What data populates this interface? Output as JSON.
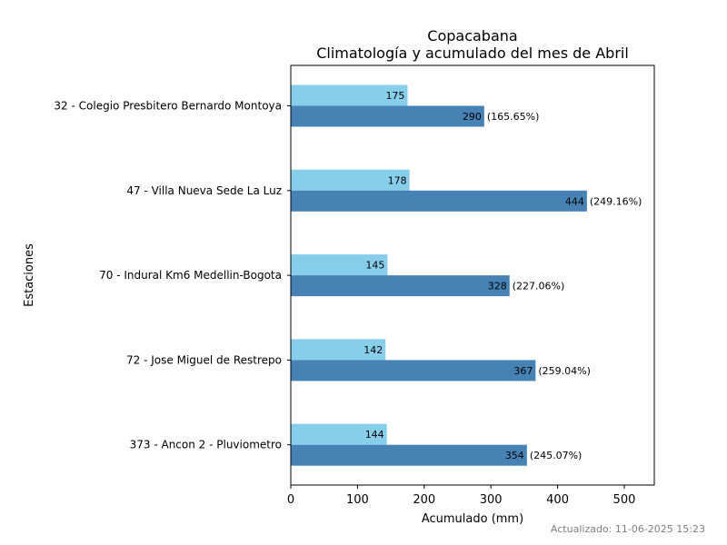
{
  "chart_data": {
    "type": "bar",
    "orientation": "horizontal",
    "title": "Copacabana",
    "subtitle": "Climatología y acumulado del mes de Abril",
    "xlabel": "Acumulado (mm)",
    "ylabel": "Estaciones",
    "xlim": [
      0,
      545
    ],
    "xticks": [
      0,
      100,
      200,
      300,
      400,
      500
    ],
    "grid": false,
    "categories": [
      "32 - Colegio Presbitero Bernardo Montoya",
      "47 - Villa Nueva Sede La Luz",
      "70 - Indural Km6 Medellin-Bogota",
      "72 - Jose Miguel de Restrepo",
      "373 - Ancon 2 - Pluviometro"
    ],
    "series": [
      {
        "values": [
          175,
          178,
          145,
          142,
          144
        ],
        "value_labels": [
          "175",
          "178",
          "145",
          "142",
          "144"
        ],
        "color": "#87CEEB"
      },
      {
        "values": [
          290,
          444,
          328,
          367,
          354
        ],
        "value_labels": [
          "290",
          "444",
          "328",
          "367",
          "354"
        ],
        "percent_labels": [
          "(165.65%)",
          "(249.16%)",
          "(227.06%)",
          "(259.04%)",
          "(245.07%)"
        ],
        "color": "#4682B4"
      }
    ]
  },
  "footer": {
    "updated": "Actualizado: 11-06-2025 15:23"
  }
}
